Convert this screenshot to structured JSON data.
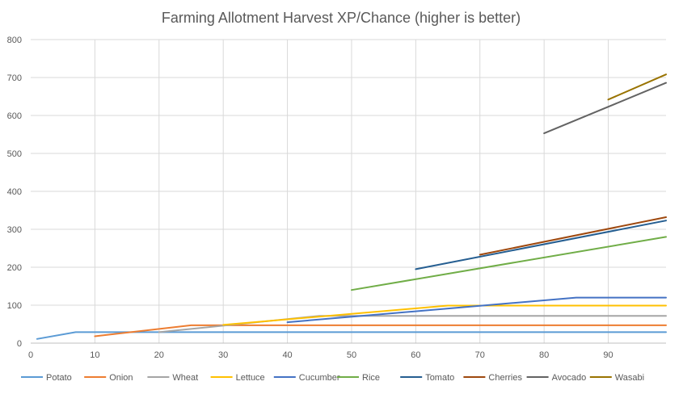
{
  "chart_data": {
    "type": "line",
    "title": "Farming Allotment Harvest XP/Chance (higher is better)",
    "xlabel": "",
    "ylabel": "",
    "xlim": [
      0,
      99
    ],
    "ylim": [
      0,
      800
    ],
    "x_ticks": [
      0,
      10,
      20,
      30,
      40,
      50,
      60,
      70,
      80,
      90
    ],
    "y_ticks": [
      0,
      100,
      200,
      300,
      400,
      500,
      600,
      700,
      800
    ],
    "grid": true,
    "legend_position": "bottom",
    "series": [
      {
        "name": "Potato",
        "color": "#5b9bd5",
        "points": [
          [
            1,
            11
          ],
          [
            7,
            29
          ],
          [
            99,
            29
          ]
        ]
      },
      {
        "name": "Onion",
        "color": "#ed7d31",
        "points": [
          [
            10,
            18
          ],
          [
            25,
            47
          ],
          [
            99,
            47
          ]
        ]
      },
      {
        "name": "Wheat",
        "color": "#a5a5a5",
        "points": [
          [
            20,
            29
          ],
          [
            45,
            72
          ],
          [
            99,
            72
          ]
        ]
      },
      {
        "name": "Lettuce",
        "color": "#ffc000",
        "points": [
          [
            30,
            48
          ],
          [
            65,
            99
          ],
          [
            99,
            99
          ]
        ]
      },
      {
        "name": "Cucumber",
        "color": "#4472c4",
        "points": [
          [
            40,
            55
          ],
          [
            85,
            120
          ],
          [
            99,
            120
          ]
        ]
      },
      {
        "name": "Rice",
        "color": "#70ad47",
        "points": [
          [
            50,
            140
          ],
          [
            99,
            280
          ]
        ]
      },
      {
        "name": "Tomato",
        "color": "#255e91",
        "points": [
          [
            60,
            195
          ],
          [
            99,
            323
          ]
        ]
      },
      {
        "name": "Cherries",
        "color": "#9e480e",
        "points": [
          [
            70,
            233
          ],
          [
            99,
            332
          ]
        ]
      },
      {
        "name": "Avocado",
        "color": "#636363",
        "points": [
          [
            80,
            553
          ],
          [
            99,
            686
          ]
        ]
      },
      {
        "name": "Wasabi",
        "color": "#997300",
        "points": [
          [
            90,
            642
          ],
          [
            99,
            708
          ]
        ]
      }
    ]
  }
}
